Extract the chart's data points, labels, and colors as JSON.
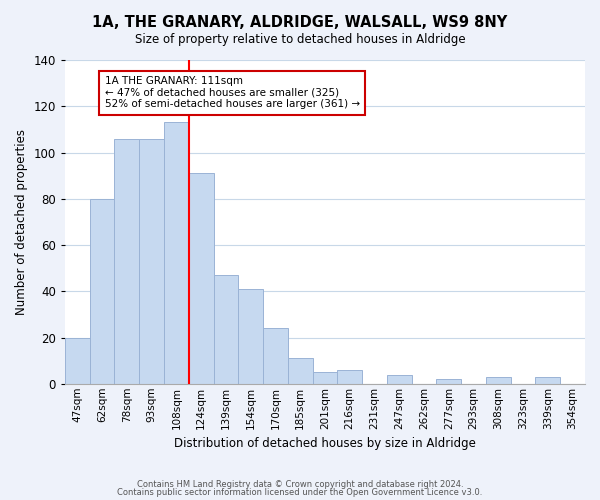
{
  "title": "1A, THE GRANARY, ALDRIDGE, WALSALL, WS9 8NY",
  "subtitle": "Size of property relative to detached houses in Aldridge",
  "xlabel": "Distribution of detached houses by size in Aldridge",
  "ylabel": "Number of detached properties",
  "bar_labels": [
    "47sqm",
    "62sqm",
    "78sqm",
    "93sqm",
    "108sqm",
    "124sqm",
    "139sqm",
    "154sqm",
    "170sqm",
    "185sqm",
    "201sqm",
    "216sqm",
    "231sqm",
    "247sqm",
    "262sqm",
    "277sqm",
    "293sqm",
    "308sqm",
    "323sqm",
    "339sqm",
    "354sqm"
  ],
  "bar_values": [
    20,
    80,
    106,
    106,
    113,
    91,
    47,
    41,
    24,
    11,
    5,
    6,
    0,
    4,
    0,
    2,
    0,
    3,
    0,
    3,
    0
  ],
  "bar_color": "#c6d9f0",
  "bar_edge_color": "#9ab3d5",
  "ylim": [
    0,
    140
  ],
  "yticks": [
    0,
    20,
    40,
    60,
    80,
    100,
    120,
    140
  ],
  "redline_bar_index": 4,
  "annotation_title": "1A THE GRANARY: 111sqm",
  "annotation_line1": "← 47% of detached houses are smaller (325)",
  "annotation_line2": "52% of semi-detached houses are larger (361) →",
  "annotation_box_color": "#ffffff",
  "annotation_box_edge": "#cc0000",
  "footer_line1": "Contains HM Land Registry data © Crown copyright and database right 2024.",
  "footer_line2": "Contains public sector information licensed under the Open Government Licence v3.0.",
  "background_color": "#eef2fa",
  "plot_bg_color": "#ffffff",
  "grid_color": "#c8d8e8"
}
